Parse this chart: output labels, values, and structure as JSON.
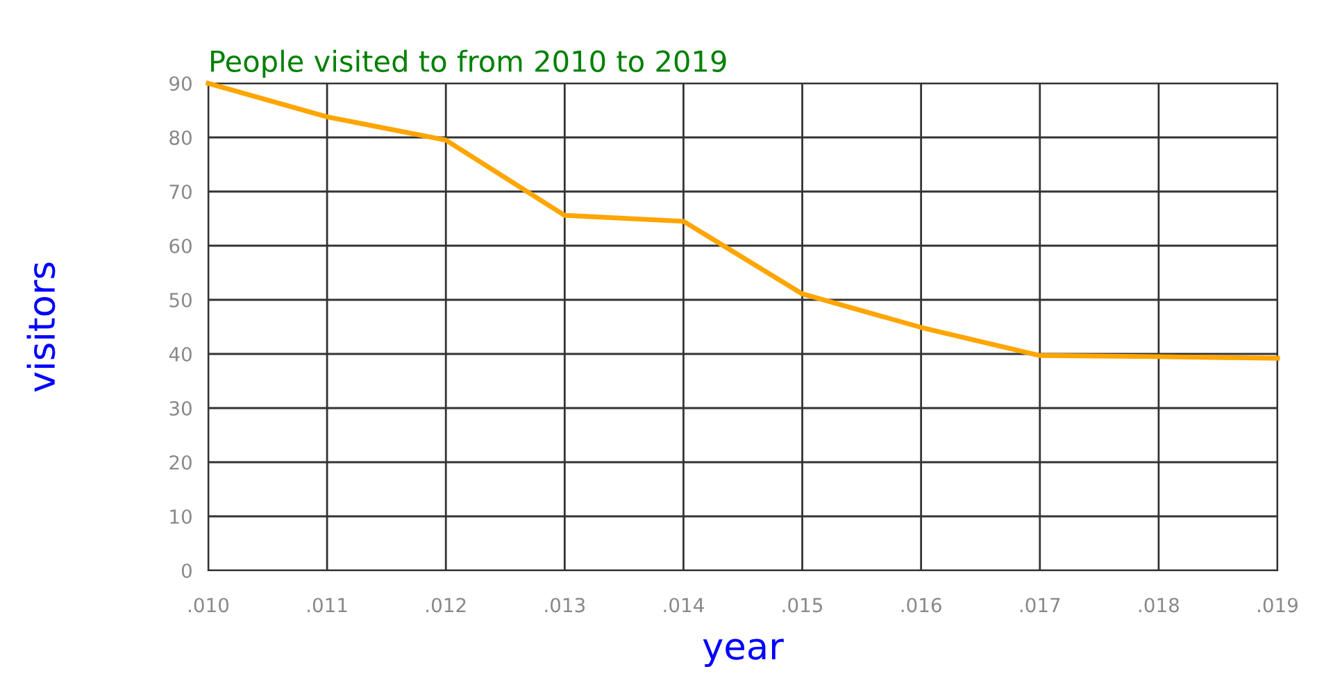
{
  "chart_data": {
    "type": "line",
    "title": "People visited to from 2010 to 2019",
    "xlabel": "year",
    "ylabel": "visitors",
    "categories": [
      ".010",
      ".011",
      ".012",
      ".013",
      ".014",
      ".015",
      ".016",
      ".017",
      ".018",
      ".019"
    ],
    "series": [
      {
        "color": "#ffa500",
        "values": [
          90,
          83.8,
          79.5,
          65.6,
          64.5,
          51.1,
          44.9,
          39.7,
          39.5,
          39.2
        ]
      }
    ],
    "ylim": [
      0,
      90
    ],
    "yticks": [
      0,
      10,
      20,
      30,
      40,
      50,
      60,
      70,
      80,
      90
    ],
    "grid": true,
    "marker": "none",
    "line_style": "solid"
  }
}
